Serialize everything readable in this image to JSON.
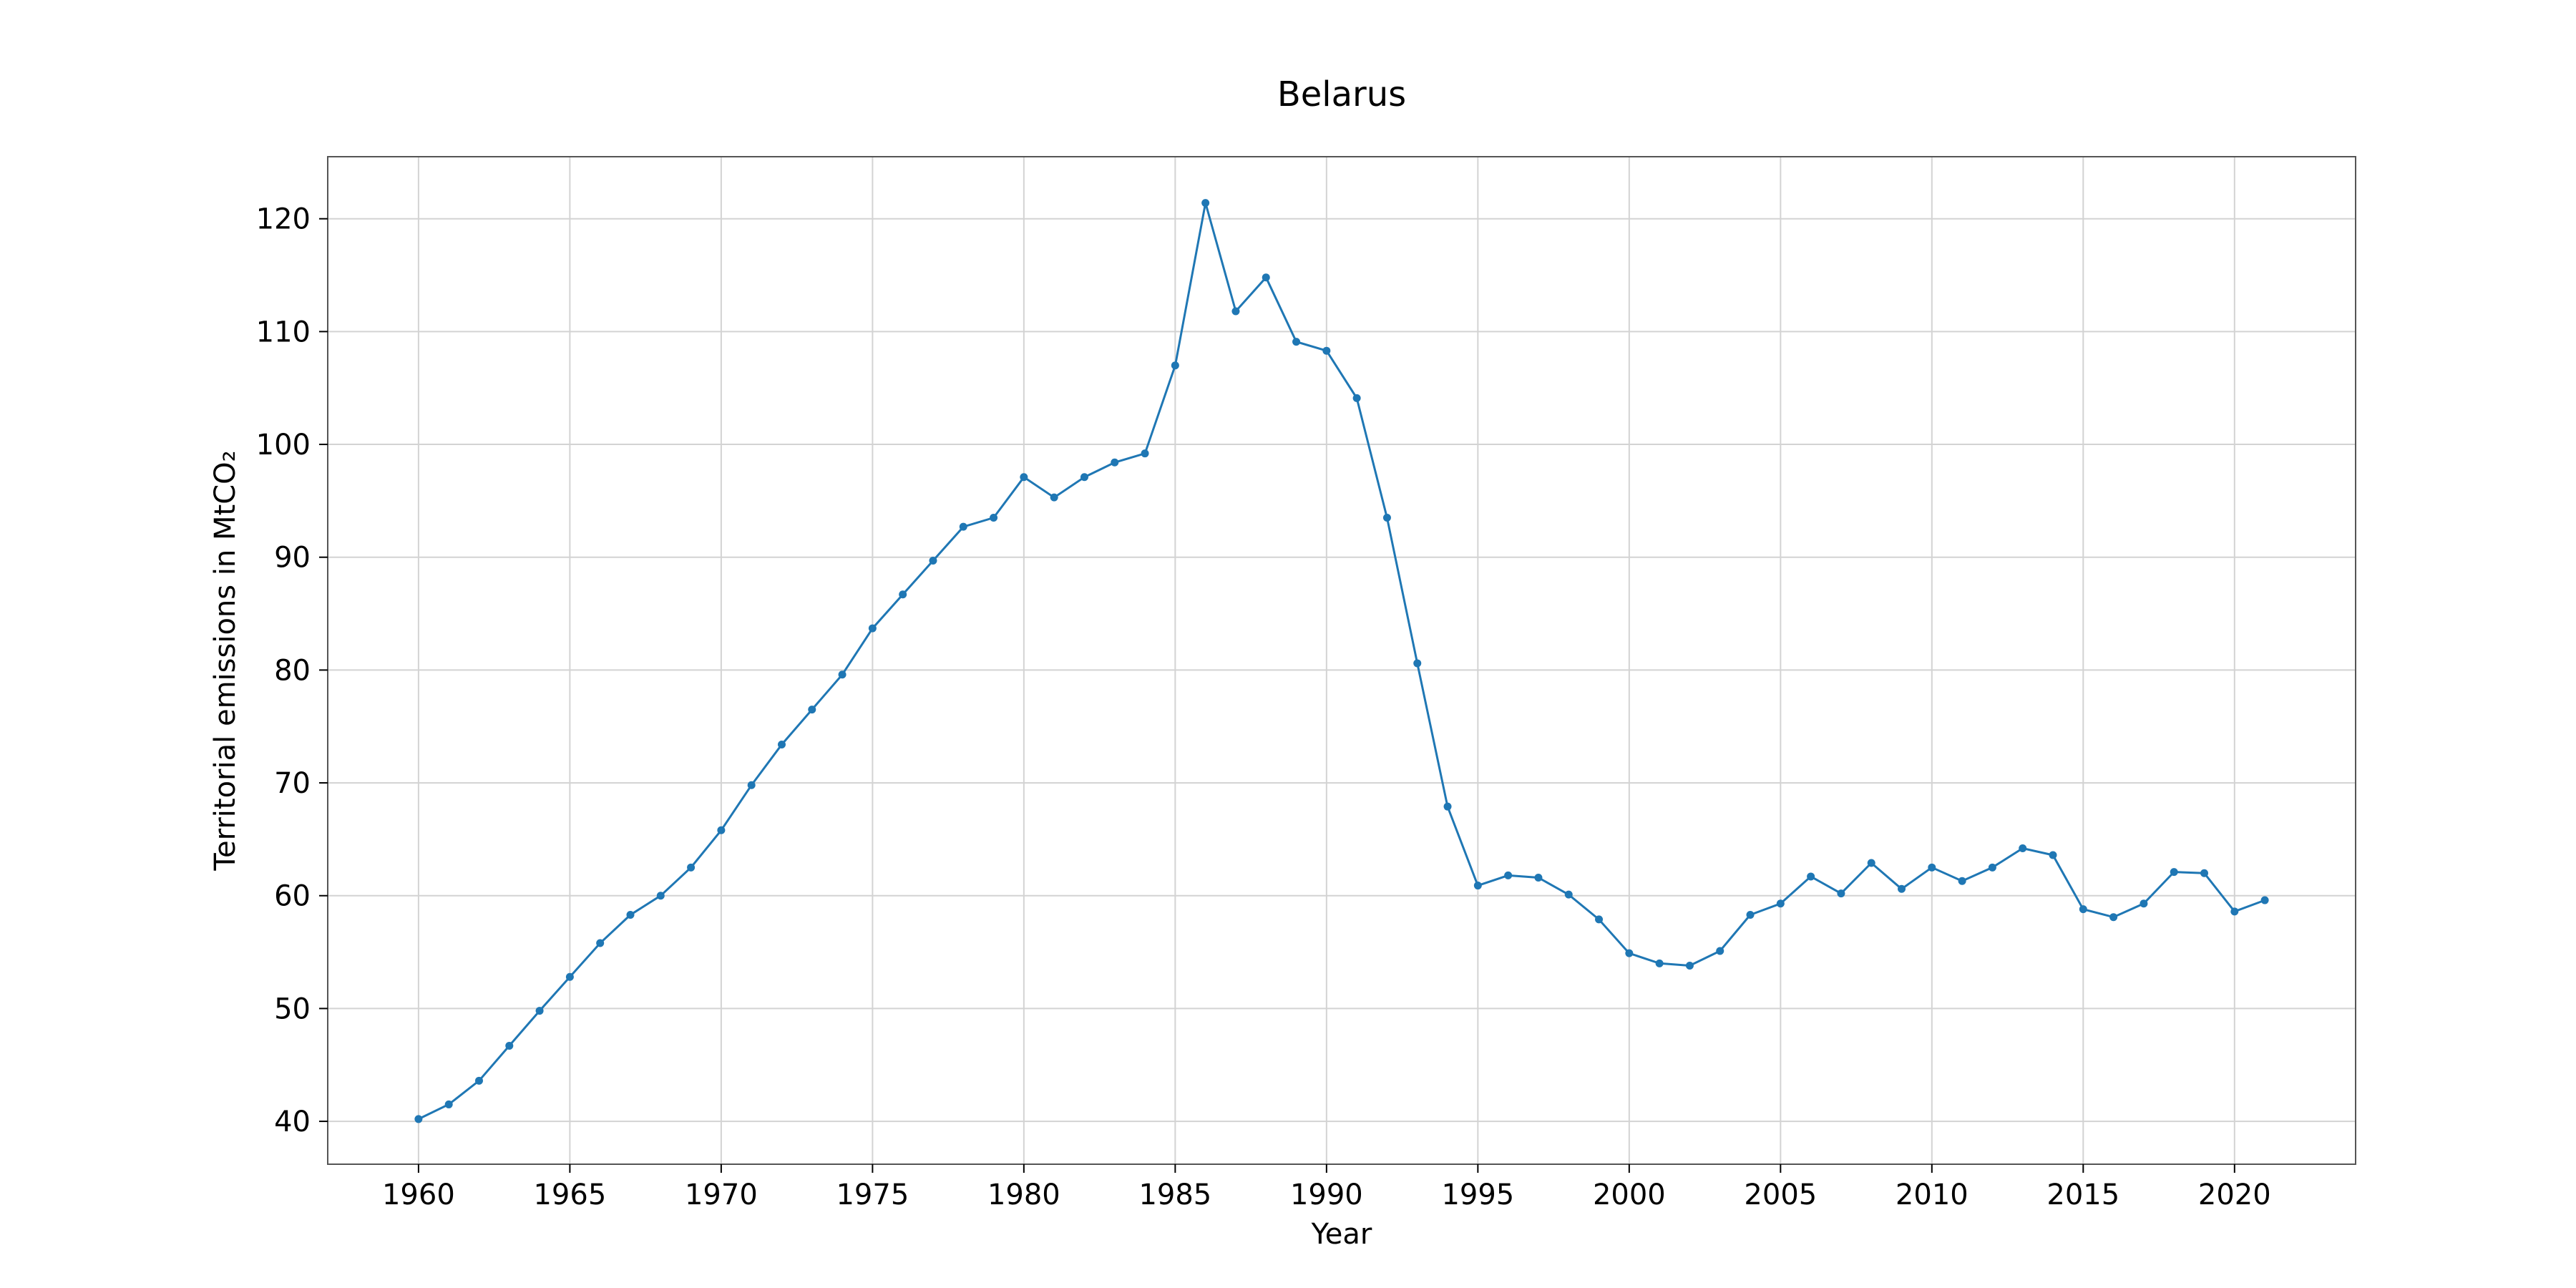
{
  "chart_data": {
    "type": "line",
    "title": "Belarus",
    "xlabel": "Year",
    "ylabel": "Territorial emissions in MtCO₂",
    "xlim": [
      1957,
      2024
    ],
    "ylim": [
      36.2,
      125.5
    ],
    "xticks": [
      1960,
      1965,
      1970,
      1975,
      1980,
      1985,
      1990,
      1995,
      2000,
      2005,
      2010,
      2015,
      2020
    ],
    "yticks": [
      40,
      50,
      60,
      70,
      80,
      90,
      100,
      110,
      120
    ],
    "grid": true,
    "color": "#1f77b4",
    "x": [
      1960,
      1961,
      1962,
      1963,
      1964,
      1965,
      1966,
      1967,
      1968,
      1969,
      1970,
      1971,
      1972,
      1973,
      1974,
      1975,
      1976,
      1977,
      1978,
      1979,
      1980,
      1981,
      1982,
      1983,
      1984,
      1985,
      1986,
      1987,
      1988,
      1989,
      1990,
      1991,
      1992,
      1993,
      1994,
      1995,
      1996,
      1997,
      1998,
      1999,
      2000,
      2001,
      2002,
      2003,
      2004,
      2005,
      2006,
      2007,
      2008,
      2009,
      2010,
      2011,
      2012,
      2013,
      2014,
      2015,
      2016,
      2017,
      2018,
      2019,
      2020,
      2021
    ],
    "y": [
      40.2,
      41.5,
      43.6,
      46.7,
      49.8,
      52.8,
      55.8,
      58.3,
      60.0,
      62.5,
      65.8,
      69.8,
      73.4,
      76.5,
      79.6,
      83.7,
      86.7,
      89.7,
      92.7,
      93.5,
      97.1,
      95.3,
      97.1,
      98.4,
      99.2,
      107.0,
      121.4,
      111.8,
      114.8,
      109.1,
      108.3,
      104.1,
      93.5,
      80.6,
      67.9,
      60.9,
      61.8,
      61.6,
      60.1,
      57.9,
      54.9,
      54.0,
      53.8,
      55.1,
      58.3,
      59.3,
      61.7,
      60.2,
      62.9,
      60.6,
      62.5,
      61.3,
      62.5,
      64.2,
      63.6,
      58.8,
      58.1,
      59.3,
      62.1,
      62.0,
      58.6,
      59.6
    ]
  }
}
